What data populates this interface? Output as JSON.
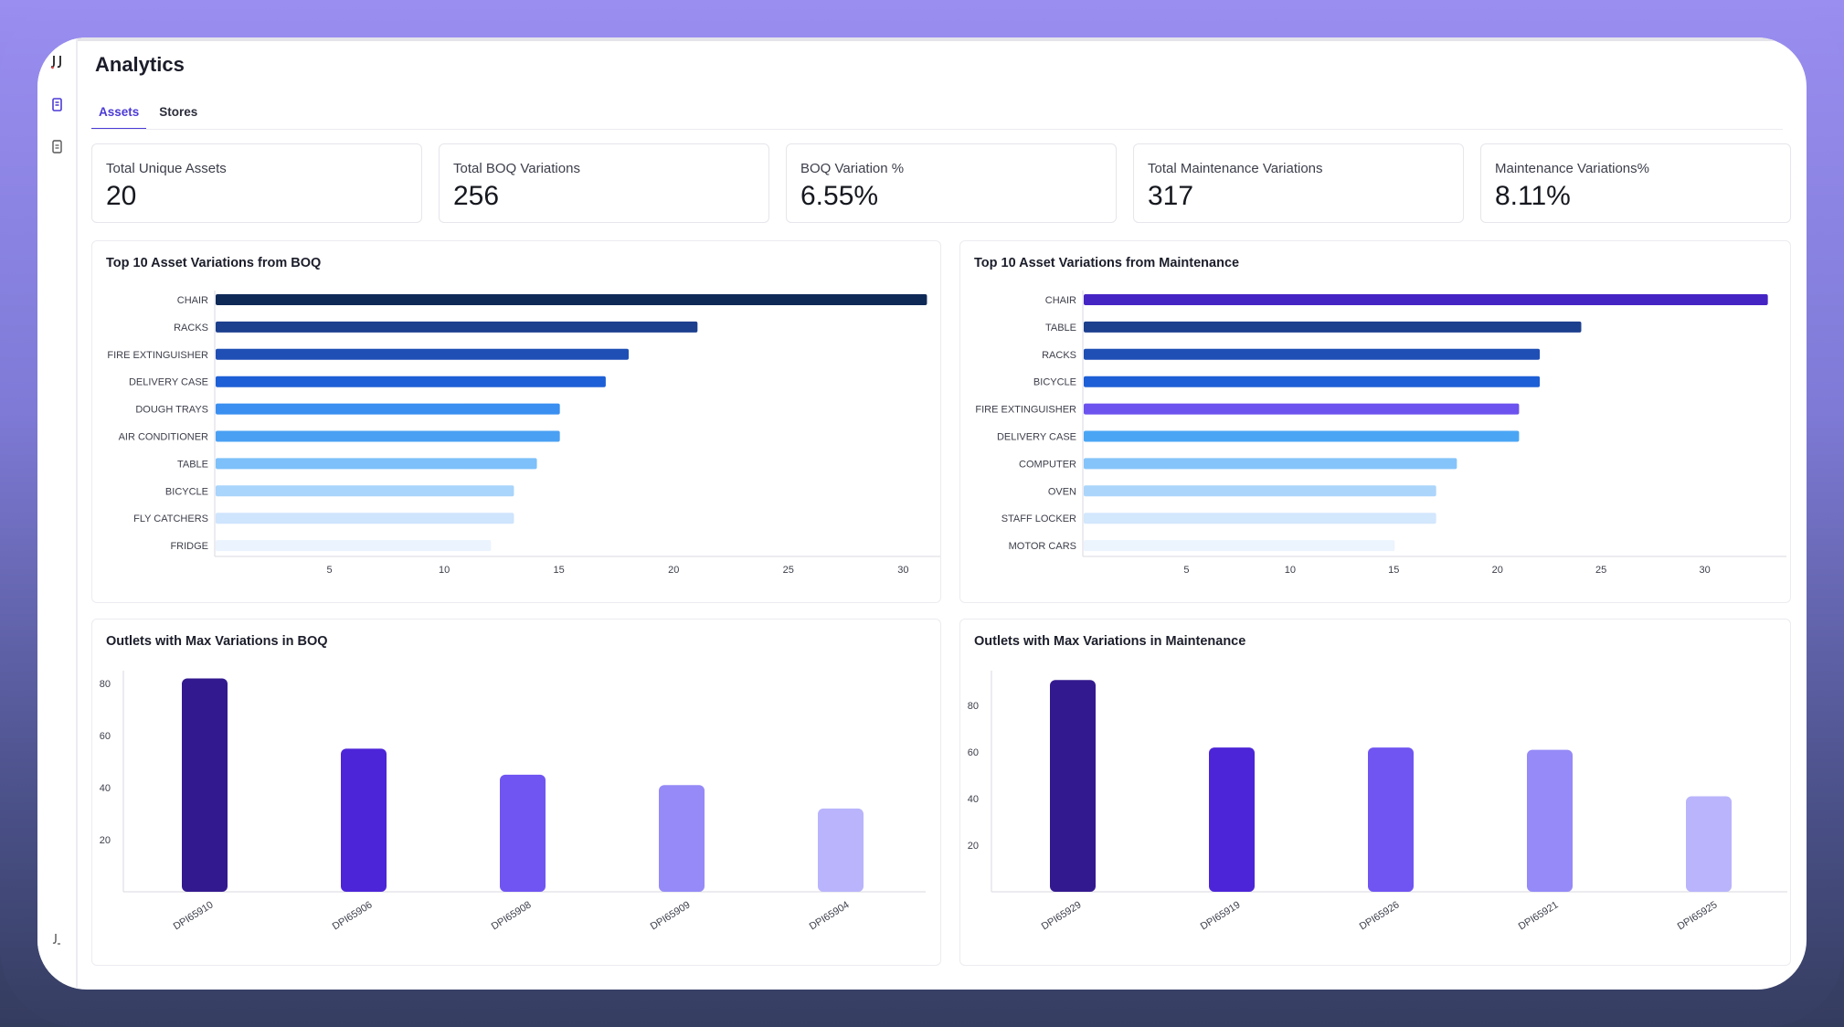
{
  "app": {
    "title": "Analytics"
  },
  "tabs": [
    {
      "label": "Assets",
      "active": true
    },
    {
      "label": "Stores",
      "active": false
    }
  ],
  "kpis": [
    {
      "label": "Total Unique Assets",
      "value": "20"
    },
    {
      "label": "Total BOQ Variations",
      "value": "256"
    },
    {
      "label": "BOQ Variation %",
      "value": "6.55%"
    },
    {
      "label": "Total Maintenance Variations",
      "value": "317"
    },
    {
      "label": "Maintenance Variations%",
      "value": "8.11%"
    }
  ],
  "chart_data": [
    {
      "type": "bar",
      "orientation": "horizontal",
      "title": "Top 10 Asset Variations from BOQ",
      "categories": [
        "CHAIR",
        "RACKS",
        "FIRE EXTINGUISHER",
        "DELIVERY CASE",
        "DOUGH TRAYS",
        "AIR CONDITIONER",
        "TABLE",
        "BICYCLE",
        "FLY CATCHERS",
        "FRIDGE"
      ],
      "values": [
        31,
        21,
        18,
        17,
        15,
        15,
        14,
        13,
        13,
        12
      ],
      "colors": [
        "#0f2957",
        "#1c3f8e",
        "#1f4fb5",
        "#1d5fd6",
        "#3a8ff0",
        "#4aa0f3",
        "#7dc0fa",
        "#a9d4fb",
        "#cfe4fd",
        "#eaf3fe"
      ],
      "xticks": [
        5,
        10,
        15,
        20,
        25,
        30
      ],
      "xlim": [
        0,
        31.5
      ]
    },
    {
      "type": "bar",
      "orientation": "horizontal",
      "title": "Top 10 Asset Variations from Maintenance",
      "categories": [
        "CHAIR",
        "TABLE",
        "RACKS",
        "BICYCLE",
        "FIRE EXTINGUISHER",
        "DELIVERY CASE",
        "COMPUTER",
        "OVEN",
        "STAFF LOCKER",
        "MOTOR CARS"
      ],
      "values": [
        33,
        24,
        22,
        22,
        21,
        21,
        18,
        17,
        17,
        15
      ],
      "colors": [
        "#4524c4",
        "#1c3f8e",
        "#1f4fb5",
        "#1d5fd6",
        "#6c52ee",
        "#4aa6f5",
        "#85c4fa",
        "#acd5fb",
        "#d3e7fd",
        "#ecf4fe"
      ],
      "xticks": [
        5,
        10,
        15,
        20,
        25,
        30
      ],
      "xlim": [
        0,
        33.5
      ]
    },
    {
      "type": "bar",
      "orientation": "vertical",
      "title": "Outlets with Max Variations in BOQ",
      "categories": [
        "DPI65910",
        "DPI65906",
        "DPI65908",
        "DPI65909",
        "DPI65904"
      ],
      "values": [
        82,
        55,
        45,
        41,
        32
      ],
      "colors": [
        "#33198f",
        "#4c25d8",
        "#7055f2",
        "#958af7",
        "#b9b4fb"
      ],
      "yticks": [
        20,
        40,
        60,
        80
      ],
      "ylim": [
        0,
        85
      ]
    },
    {
      "type": "bar",
      "orientation": "vertical",
      "title": "Outlets with Max Variations in Maintenance",
      "categories": [
        "DPI65929",
        "DPI65919",
        "DPI65926",
        "DPI65921",
        "DPI65925"
      ],
      "values": [
        91,
        62,
        62,
        61,
        41
      ],
      "colors": [
        "#33198f",
        "#4c25d8",
        "#7055f2",
        "#958af7",
        "#b9b4fb"
      ],
      "yticks": [
        20,
        40,
        60,
        80
      ],
      "ylim": [
        0,
        95
      ]
    }
  ]
}
